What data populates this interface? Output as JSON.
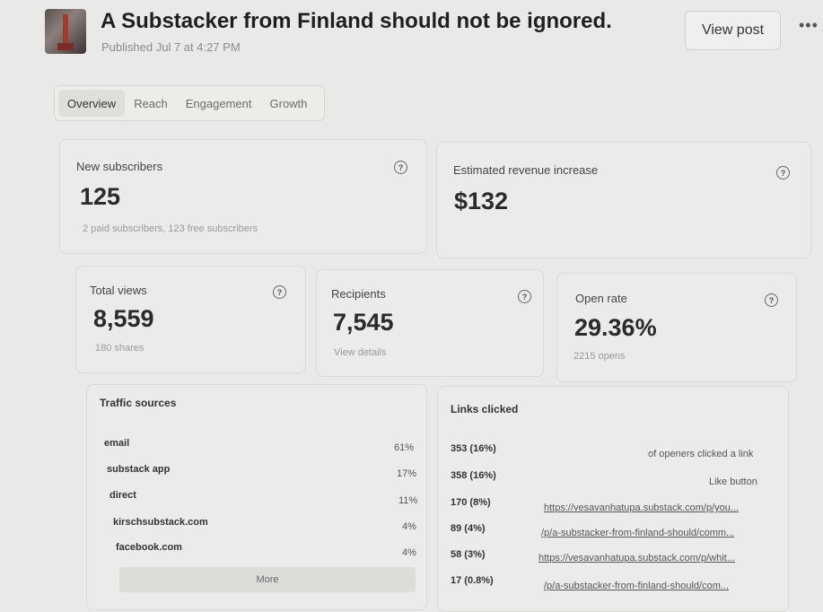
{
  "post": {
    "title": "A Substacker from Finland should not be ignored.",
    "published": "Published Jul 7 at 4:27 PM",
    "view_post_label": "View post",
    "more_menu": "•••"
  },
  "tabs": [
    {
      "label": "Overview",
      "active": true
    },
    {
      "label": "Reach",
      "active": false
    },
    {
      "label": "Engagement",
      "active": false
    },
    {
      "label": "Growth",
      "active": false
    }
  ],
  "stats": {
    "new_subscribers": {
      "label": "New subscribers",
      "value": "125",
      "sub": "2 paid subscribers, 123 free subscribers"
    },
    "revenue": {
      "label": "Estimated revenue increase",
      "value": "$132"
    },
    "total_views": {
      "label": "Total views",
      "value": "8,559",
      "sub": "180 shares"
    },
    "recipients": {
      "label": "Recipients",
      "value": "7,545",
      "sub": "View details"
    },
    "open_rate": {
      "label": "Open rate",
      "value": "29.36%",
      "sub": "2215 opens"
    }
  },
  "help_glyph": "?",
  "traffic": {
    "title": "Traffic sources",
    "rows": [
      {
        "name": "email",
        "pct": "61%"
      },
      {
        "name": "substack app",
        "pct": "17%"
      },
      {
        "name": "direct",
        "pct": "11%"
      },
      {
        "name": "kirschsubstack.com",
        "pct": "4%"
      },
      {
        "name": "facebook.com",
        "pct": "4%"
      }
    ],
    "more_label": "More"
  },
  "links": {
    "title": "Links clicked",
    "rows": [
      {
        "count": "353 (16%)",
        "text": "of openers clicked a link"
      },
      {
        "count": "358 (16%)",
        "text": "Like button"
      },
      {
        "count": "170 (8%)",
        "text": "https://vesavanhatupa.substack.com/p/you..."
      },
      {
        "count": "89 (4%)",
        "text": "/p/a-substacker-from-finland-should/comm..."
      },
      {
        "count": "58 (3%)",
        "text": "https://vesavanhatupa.substack.com/p/whit..."
      },
      {
        "count": "17 (0.8%)",
        "text": "/p/a-substacker-from-finland-should/com..."
      }
    ]
  }
}
